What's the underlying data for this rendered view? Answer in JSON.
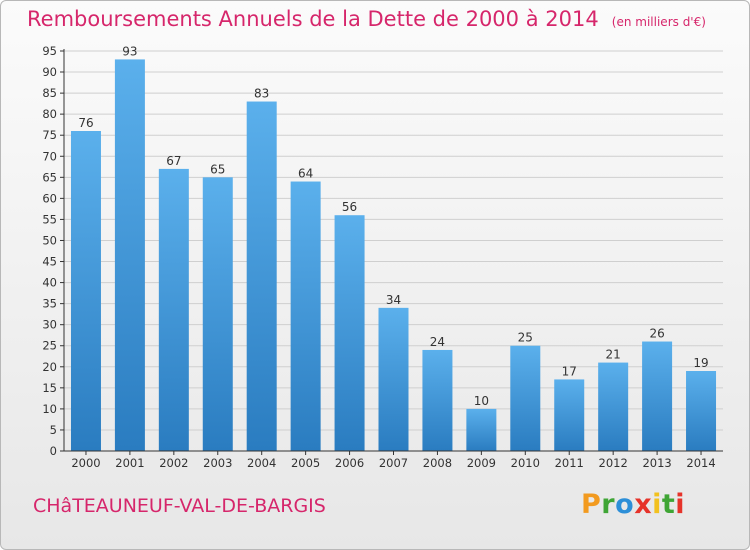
{
  "header": {
    "title": "Remboursements Annuels de la Dette de 2000 à 2014",
    "unit": "(en milliers d'€)"
  },
  "footer": {
    "commune": "CHâTEAUNEUF-VAL-DE-BARGIS",
    "brand_letters": [
      "P",
      "r",
      "o",
      "x",
      "i",
      "t",
      "i"
    ],
    "brand_colors": [
      "#f29a1f",
      "#3fa535",
      "#2d8fd8",
      "#e6332a",
      "#f2c11f",
      "#3fa535",
      "#e6332a"
    ]
  },
  "colors": {
    "title": "#d6266b",
    "bar_light": "#5bb0ec",
    "bar_dark": "#2a7cc0",
    "axis": "#333333",
    "grid": "#cfcfcf"
  },
  "chart_data": {
    "type": "bar",
    "title": "Remboursements Annuels de la Dette de 2000 à 2014",
    "subtitle": "(en milliers d'€)",
    "categories": [
      "2000",
      "2001",
      "2002",
      "2003",
      "2004",
      "2005",
      "2006",
      "2007",
      "2008",
      "2009",
      "2010",
      "2011",
      "2012",
      "2013",
      "2014"
    ],
    "values": [
      76,
      93,
      67,
      65,
      83,
      64,
      56,
      34,
      24,
      10,
      25,
      17,
      21,
      26,
      19
    ],
    "xlabel": "",
    "ylabel": "",
    "ylim": [
      0,
      95
    ],
    "yticks": [
      0,
      5,
      10,
      15,
      20,
      25,
      30,
      35,
      40,
      45,
      50,
      55,
      60,
      65,
      70,
      75,
      80,
      85,
      90,
      95
    ],
    "grid": true,
    "data_labels": true
  }
}
